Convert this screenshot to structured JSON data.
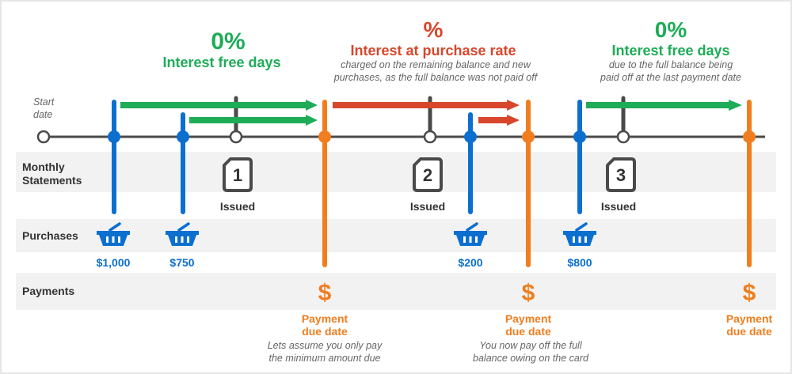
{
  "colors": {
    "purchase_blue": "#0b6fd0",
    "interest_free_green": "#1eac58",
    "interest_red": "#d8472c",
    "payment_orange": "#f07e1f",
    "statement_gray": "#4a4a4a",
    "band_gray": "#f2f2f2"
  },
  "headers": [
    {
      "big": "0%",
      "title": "Interest free days",
      "note1": "",
      "note2": ""
    },
    {
      "big": "%",
      "title": "Interest at purchase rate",
      "note1": "charged on the remaining balance and new",
      "note2": "purchases, as the full balance was not paid off"
    },
    {
      "big": "0%",
      "title": "Interest free days",
      "note1": "due to the full balance being",
      "note2": "paid off at the last payment date"
    }
  ],
  "start_label": {
    "line1": "Start",
    "line2": "date"
  },
  "rows": {
    "statements_1": "Monthly",
    "statements_2": "Statements",
    "purchases": "Purchases",
    "payments": "Payments"
  },
  "statements": [
    {
      "number": "1",
      "label": "Issued"
    },
    {
      "number": "2",
      "label": "Issued"
    },
    {
      "number": "3",
      "label": "Issued"
    }
  ],
  "purchases": [
    {
      "amount": "$1,000",
      "icon": "basket-icon"
    },
    {
      "amount": "$750",
      "icon": "basket-icon"
    },
    {
      "amount": "$200",
      "icon": "basket-icon"
    },
    {
      "amount": "$800",
      "icon": "basket-icon"
    }
  ],
  "payments": [
    {
      "symbol": "$",
      "line1": "Payment",
      "line2": "due date",
      "note1": "Lets assume you only pay",
      "note2": "the minimum amount due"
    },
    {
      "symbol": "$",
      "line1": "Payment",
      "line2": "due date",
      "note1": "You now pay off the full",
      "note2": "balance owing on the card"
    },
    {
      "symbol": "$",
      "line1": "Payment",
      "line2": "due date",
      "note1": "",
      "note2": ""
    }
  ]
}
